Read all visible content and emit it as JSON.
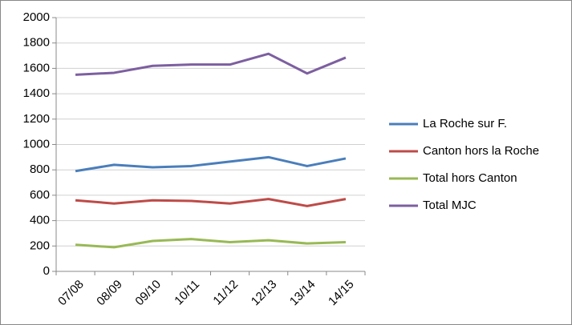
{
  "chart_data": {
    "type": "line",
    "categories": [
      "07/08",
      "08/09",
      "09/10",
      "10/11",
      "11/12",
      "12/13",
      "13/14",
      "14/15"
    ],
    "series": [
      {
        "name": "La Roche sur F.",
        "color": "#4a7ebb",
        "values": [
          790,
          840,
          820,
          830,
          865,
          900,
          830,
          890
        ]
      },
      {
        "name": "Canton hors la Roche",
        "color": "#be4b48",
        "values": [
          560,
          535,
          560,
          555,
          535,
          570,
          515,
          570
        ]
      },
      {
        "name": "Total hors Canton",
        "color": "#98b954",
        "values": [
          210,
          190,
          240,
          255,
          230,
          245,
          220,
          230
        ]
      },
      {
        "name": "Total MJC",
        "color": "#7d5fa0",
        "values": [
          1550,
          1565,
          1620,
          1630,
          1630,
          1715,
          1560,
          1685
        ]
      }
    ],
    "ylim": [
      0,
      2000
    ],
    "yticks": [
      0,
      200,
      400,
      600,
      800,
      1000,
      1200,
      1400,
      1600,
      1800,
      2000
    ],
    "grid": true,
    "legend": "right"
  }
}
